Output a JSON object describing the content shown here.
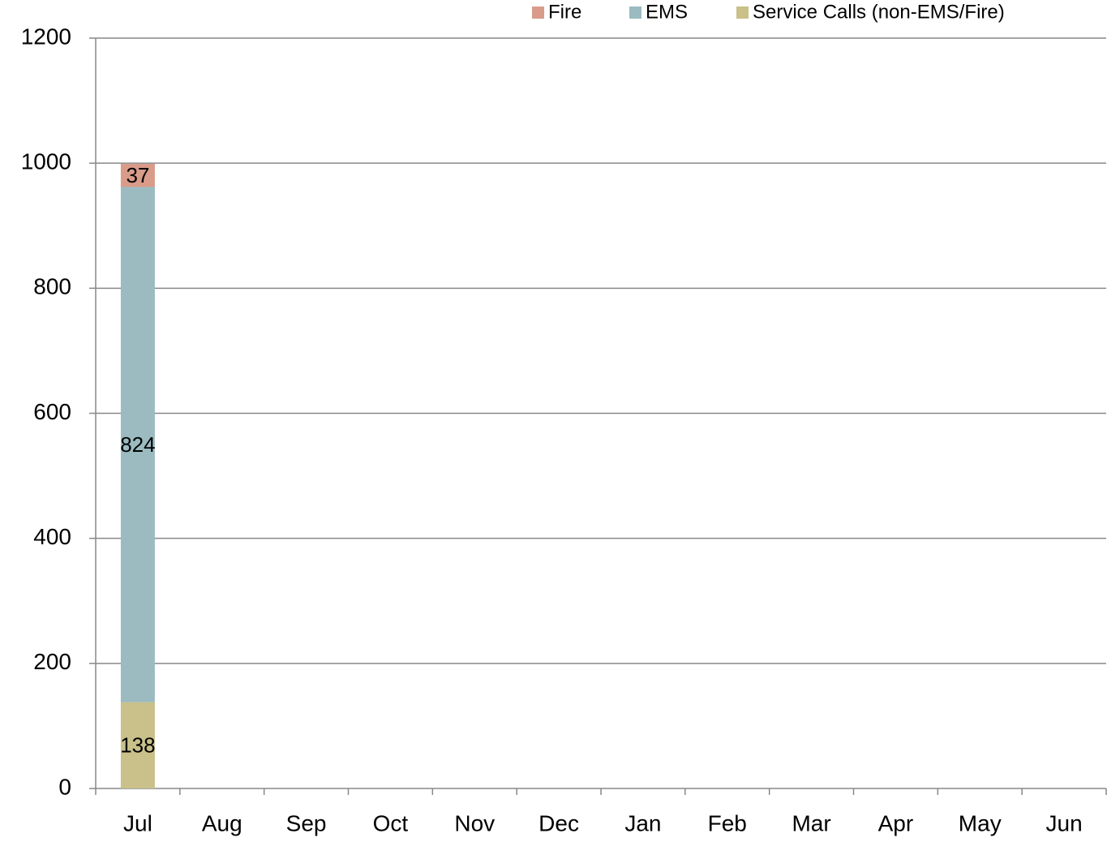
{
  "chart_data": {
    "type": "stacked_bar",
    "categories": [
      "Jul",
      "Aug",
      "Sep",
      "Oct",
      "Nov",
      "Dec",
      "Jan",
      "Feb",
      "Mar",
      "Apr",
      "May",
      "Jun"
    ],
    "series": [
      {
        "name": "Fire",
        "color": "#d99b8a",
        "values": [
          37,
          null,
          null,
          null,
          null,
          null,
          null,
          null,
          null,
          null,
          null,
          null
        ]
      },
      {
        "name": "EMS",
        "color": "#9bbbc1",
        "values": [
          824,
          null,
          null,
          null,
          null,
          null,
          null,
          null,
          null,
          null,
          null,
          null
        ]
      },
      {
        "name": "Service Calls (non-EMS/Fire)",
        "color": "#c9c08a",
        "values": [
          138,
          null,
          null,
          null,
          null,
          null,
          null,
          null,
          null,
          null,
          null,
          null
        ]
      }
    ],
    "ylim": [
      0,
      1200
    ],
    "yticks": [
      0,
      200,
      400,
      600,
      800,
      1000,
      1200
    ],
    "grid": true,
    "legend": "top"
  }
}
